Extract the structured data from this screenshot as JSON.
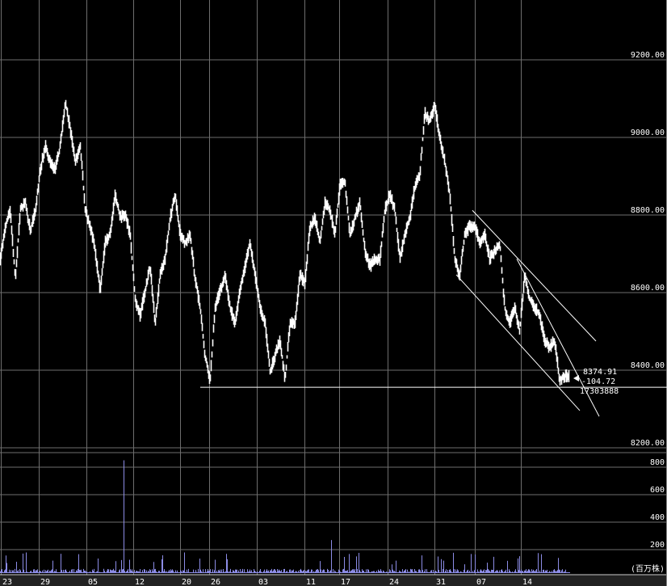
{
  "chart_data": {
    "type": "line",
    "price_axis": {
      "ticks": [
        9200,
        9000,
        8800,
        8600,
        8400,
        8200
      ],
      "tick_labels": [
        "9200.00",
        "9000.00",
        "8800.00",
        "8600.00",
        "8400.00",
        "8200.00"
      ],
      "ylim": [
        8150,
        9350
      ]
    },
    "volume_axis": {
      "ticks": [
        800,
        600,
        400,
        200
      ],
      "tick_labels": [
        "800",
        "600",
        "400",
        "200"
      ],
      "unit_label": "(百万株)",
      "ylim": [
        0,
        850
      ]
    },
    "x_tick_labels": [
      "23",
      "29",
      "05",
      "12",
      "20",
      "26",
      "03",
      "11",
      "17",
      "24",
      "31",
      "07",
      "14"
    ],
    "grid": true,
    "price_series": [
      8687,
      8771,
      8812,
      8635,
      8812,
      8833,
      8760,
      8812,
      8917,
      8979,
      8937,
      8917,
      8979,
      9094,
      9021,
      8937,
      8979,
      8812,
      8771,
      8708,
      8604,
      8729,
      8750,
      8854,
      8792,
      8802,
      8750,
      8583,
      8542,
      8604,
      8667,
      8521,
      8646,
      8687,
      8792,
      8854,
      8750,
      8729,
      8750,
      8635,
      8562,
      8437,
      8375,
      8562,
      8604,
      8646,
      8562,
      8521,
      8604,
      8667,
      8729,
      8646,
      8562,
      8521,
      8396,
      8437,
      8479,
      8375,
      8521,
      8521,
      8646,
      8625,
      8771,
      8792,
      8729,
      8833,
      8812,
      8750,
      8875,
      8885,
      8750,
      8792,
      8833,
      8708,
      8667,
      8687,
      8687,
      8812,
      8854,
      8812,
      8687,
      8750,
      8792,
      8875,
      8906,
      9062,
      9042,
      9083,
      9000,
      8937,
      8854,
      8687,
      8646,
      8750,
      8771,
      8771,
      8729,
      8750,
      8687,
      8708,
      8729,
      8562,
      8521,
      8562,
      8500,
      8646,
      8583,
      8562,
      8542,
      8479,
      8458,
      8479,
      8375,
      8385,
      8385
    ],
    "volume_base": 60,
    "volume_spikes": [
      850,
      270,
      150,
      130,
      120
    ],
    "support_line_price": 8356,
    "channel_lines": [
      [
        8812,
        8475
      ],
      [
        8646,
        8296
      ],
      [
        8687,
        8281
      ]
    ],
    "last_price_box": {
      "price": "8374.91",
      "change": "-104.72",
      "volume": "17303888"
    }
  }
}
